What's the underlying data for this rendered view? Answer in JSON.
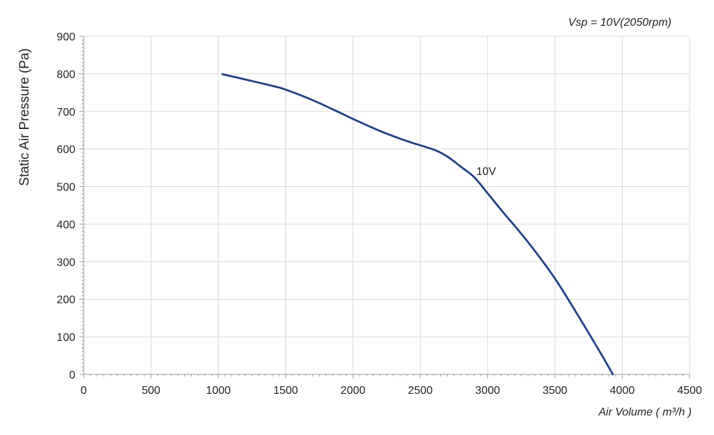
{
  "chart_data": {
    "type": "line",
    "annotation_top_right": "Vsp = 10V(2050rpm)",
    "xlabel": "Air Volume ( m³/h )",
    "ylabel": "Static Air Pressure  (Pa)",
    "xlim": [
      0,
      4500
    ],
    "ylim": [
      0,
      900
    ],
    "x_ticks": [
      0,
      500,
      1000,
      1500,
      2000,
      2500,
      3000,
      3500,
      4000,
      4500
    ],
    "y_ticks": [
      0,
      100,
      200,
      300,
      400,
      500,
      600,
      700,
      800,
      900
    ],
    "grid": true,
    "colors": {
      "series": "#1f3f8c",
      "grid": "#d9d9d9",
      "axis": "#9a9a9a"
    },
    "series": [
      {
        "name": "10V",
        "x": [
          1030,
          1200,
          1400,
          1500,
          1700,
          1900,
          2000,
          2200,
          2400,
          2600,
          2700,
          2800,
          2900,
          3000,
          3100,
          3300,
          3500,
          3700,
          3850,
          3930
        ],
        "y": [
          799,
          785,
          768,
          758,
          730,
          697,
          680,
          648,
          621,
          598,
          580,
          553,
          525,
          482,
          438,
          352,
          255,
          140,
          50,
          0
        ]
      }
    ]
  }
}
